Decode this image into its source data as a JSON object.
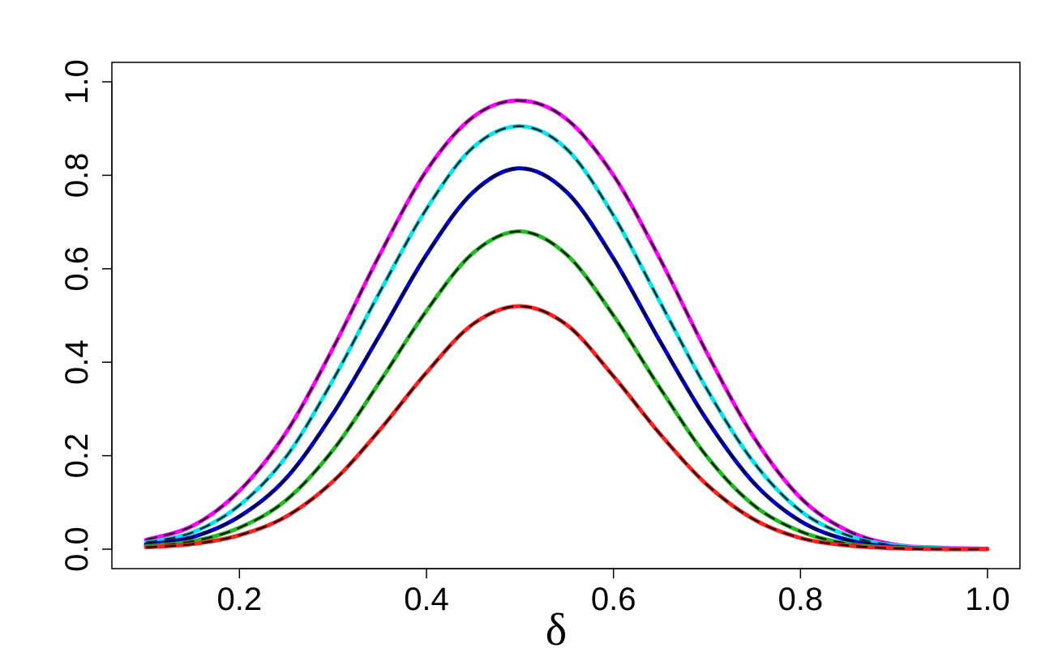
{
  "chart_data": {
    "type": "line",
    "title": "",
    "xlabel": "δ",
    "ylabel": "",
    "xlim": [
      0.1,
      1.0
    ],
    "ylim": [
      0.0,
      1.0
    ],
    "grid": false,
    "x_ticks": [
      "0.2",
      "0.4",
      "0.6",
      "0.8",
      "1.0"
    ],
    "y_ticks": [
      "0.0",
      "0.2",
      "0.4",
      "0.6",
      "0.8",
      "1.0"
    ],
    "x": [
      0.1,
      0.15,
      0.2,
      0.25,
      0.3,
      0.35,
      0.4,
      0.45,
      0.5,
      0.55,
      0.6,
      0.65,
      0.7,
      0.75,
      0.8,
      0.85,
      0.9,
      0.95,
      1.0
    ],
    "overlay_style": "black dashed overlay on each series",
    "series": [
      {
        "color": "#ff00ff",
        "values": [
          0.02,
          0.05,
          0.125,
          0.25,
          0.43,
          0.63,
          0.81,
          0.925,
          0.96,
          0.92,
          0.8,
          0.62,
          0.42,
          0.24,
          0.11,
          0.04,
          0.01,
          0.003,
          0.001
        ]
      },
      {
        "color": "#00e5ee",
        "values": [
          0.014,
          0.036,
          0.094,
          0.198,
          0.362,
          0.55,
          0.728,
          0.86,
          0.905,
          0.856,
          0.714,
          0.528,
          0.342,
          0.186,
          0.082,
          0.03,
          0.008,
          0.002,
          0.0
        ]
      },
      {
        "color": "#0000cd",
        "values": [
          0.01,
          0.026,
          0.07,
          0.152,
          0.29,
          0.458,
          0.63,
          0.764,
          0.815,
          0.764,
          0.622,
          0.444,
          0.276,
          0.142,
          0.06,
          0.02,
          0.005,
          0.001,
          0.0
        ]
      },
      {
        "color": "#22bb22",
        "values": [
          0.006,
          0.017,
          0.046,
          0.105,
          0.212,
          0.358,
          0.51,
          0.634,
          0.68,
          0.63,
          0.5,
          0.344,
          0.198,
          0.094,
          0.038,
          0.012,
          0.003,
          0.001,
          0.0
        ]
      },
      {
        "color": "#ff2020",
        "values": [
          0.004,
          0.011,
          0.03,
          0.07,
          0.145,
          0.255,
          0.378,
          0.482,
          0.52,
          0.48,
          0.37,
          0.246,
          0.138,
          0.064,
          0.024,
          0.008,
          0.002,
          0.0,
          0.0
        ]
      }
    ]
  }
}
